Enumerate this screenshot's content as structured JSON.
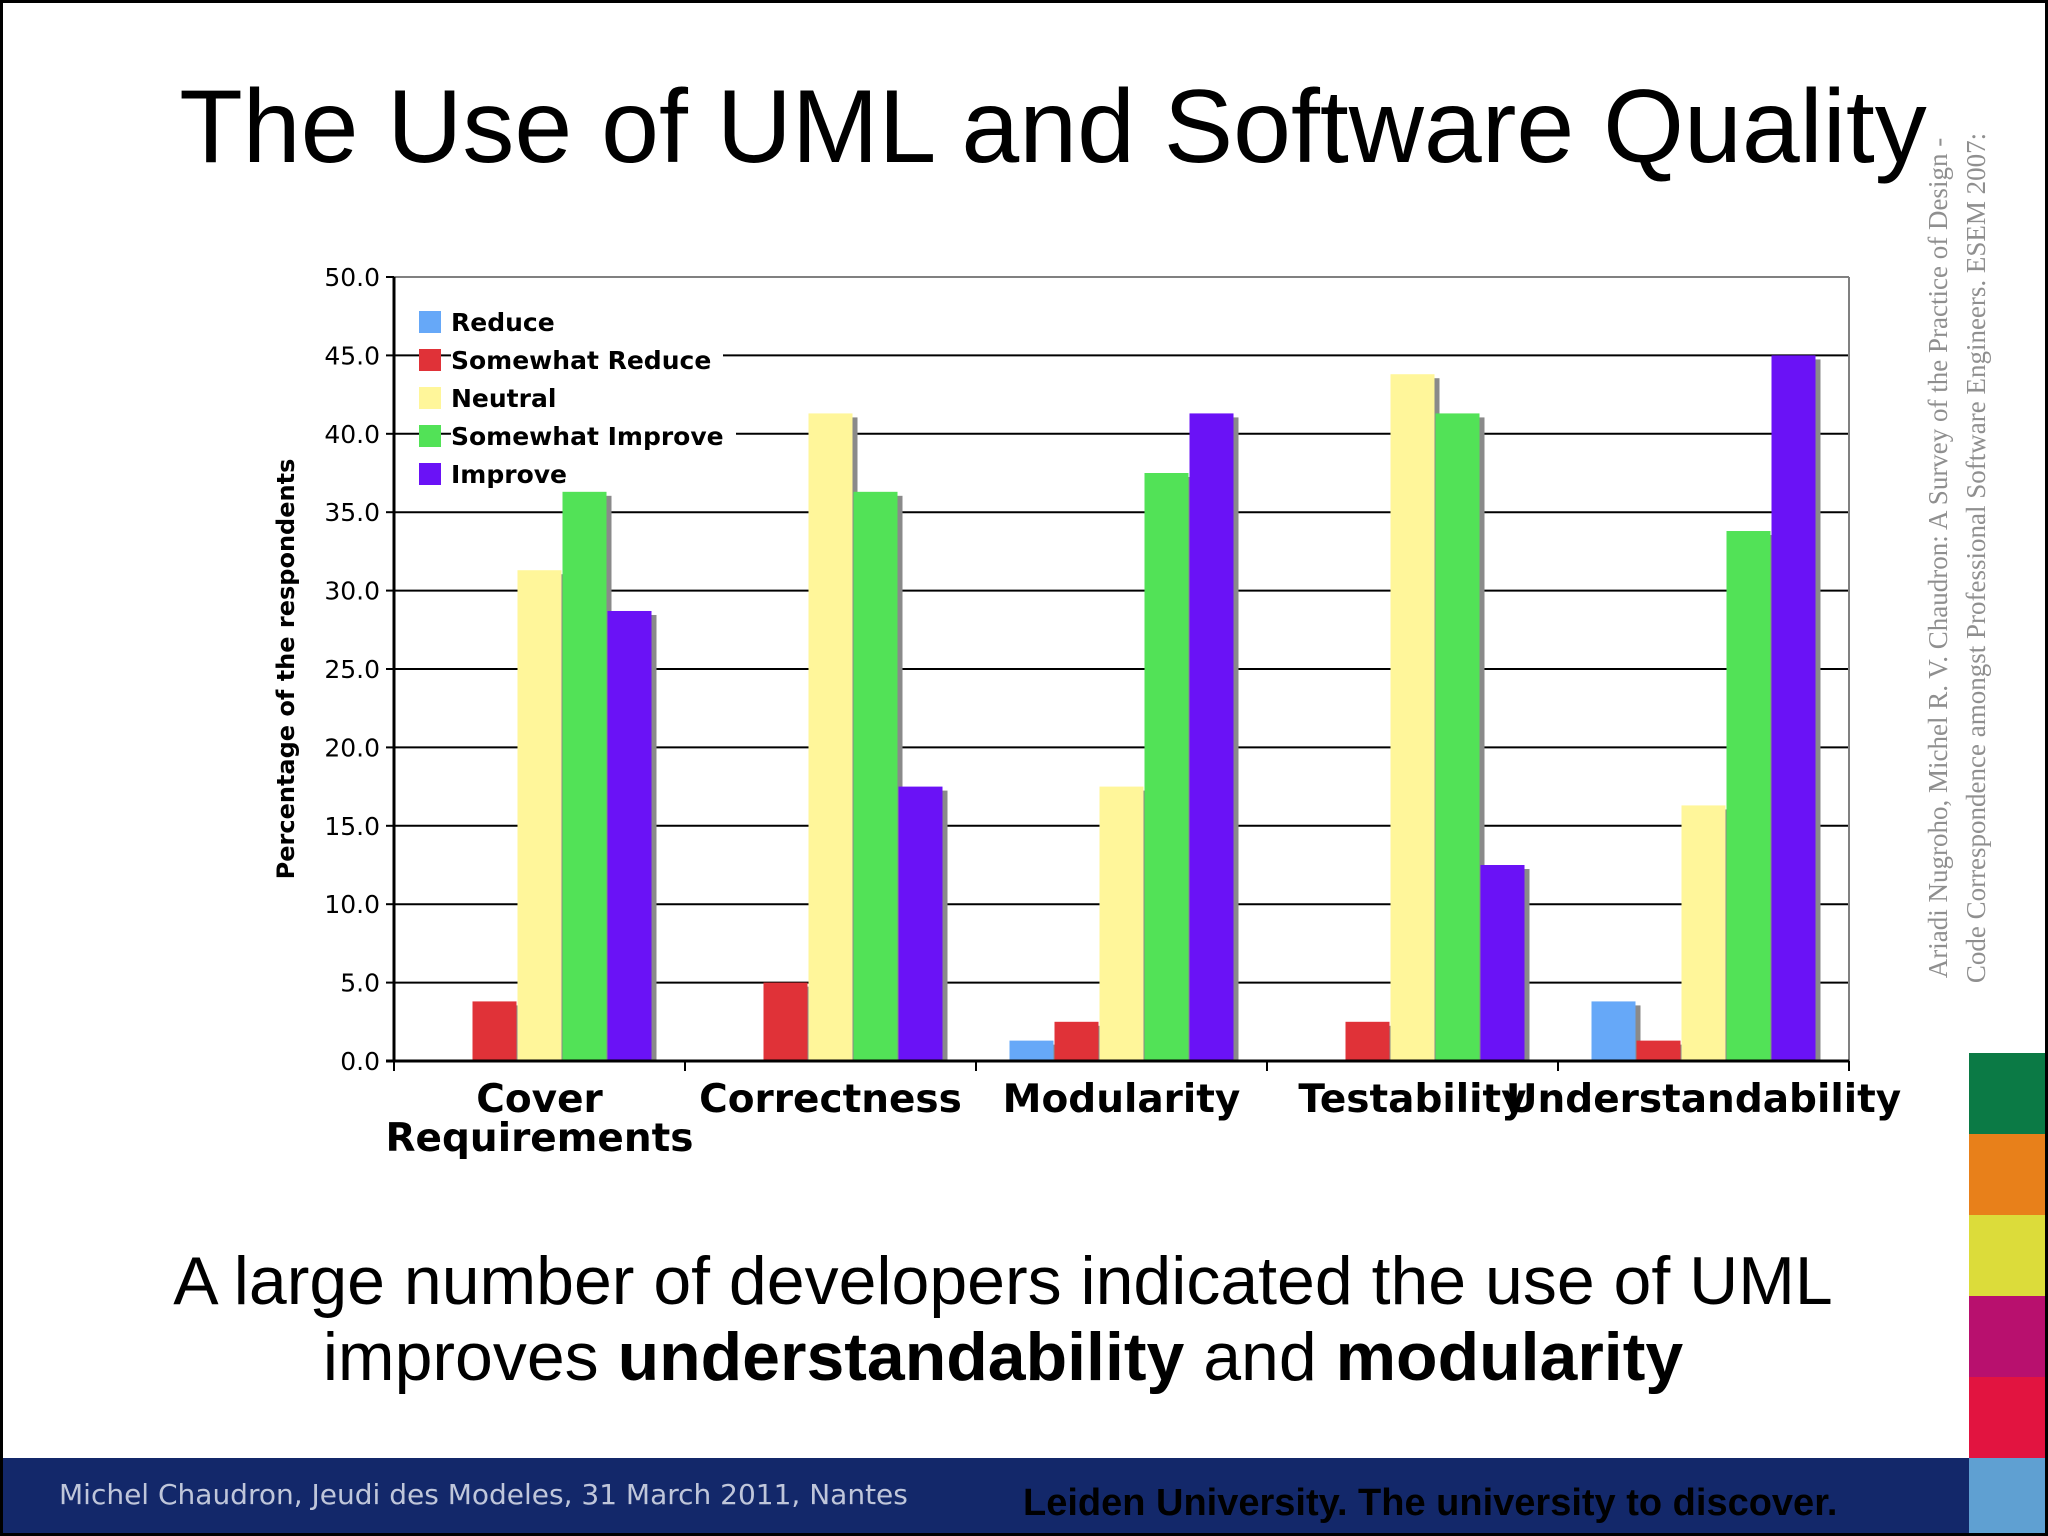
{
  "slide": {
    "title": "The Use of UML and Software Quality",
    "citation_line1": "Ariadi Nugroho, Michel R. V. Chaudron: A Survey of the Practice of Design -",
    "citation_line2": "Code Correspondence amongst Professional Software Engineers. ESEM 2007:",
    "caption_line1": "A large number of developers indicated the use of UML",
    "caption_pre": "improves ",
    "caption_bold1": "understandability",
    "caption_mid": " and ",
    "caption_bold2": "modularity",
    "footer_left": "Michel Chaudron, Jeudi des Modeles, 31 March 2011, Nantes",
    "footer_right": "Leiden University. The university to discover."
  },
  "colors": {
    "footer_bg": "#13286a",
    "stripes": [
      "#0b7a45",
      "#e8801a",
      "#dcdc3a",
      "#b8106e",
      "#e21440",
      "#5fa0d2"
    ]
  },
  "chart_data": {
    "type": "bar",
    "ylabel": "Percentage of the respondents",
    "xlabel": "",
    "ylim": [
      0,
      50
    ],
    "yticks": [
      "0.0",
      "5.0",
      "10.0",
      "15.0",
      "20.0",
      "25.0",
      "30.0",
      "35.0",
      "40.0",
      "45.0",
      "50.0"
    ],
    "categories": [
      [
        "Cover",
        "Requirements"
      ],
      [
        "Correctness"
      ],
      [
        "Modularity"
      ],
      [
        "Testability"
      ],
      [
        "Understandability"
      ]
    ],
    "grid": true,
    "legend_position": "top-left",
    "series": [
      {
        "name": "Reduce",
        "color": "#66a8f8",
        "values": [
          0,
          0,
          1.3,
          0,
          3.8
        ]
      },
      {
        "name": "Somewhat Reduce",
        "color": "#e03238",
        "values": [
          3.8,
          5.0,
          2.5,
          2.5,
          1.3
        ]
      },
      {
        "name": "Neutral",
        "color": "#fff69a",
        "values": [
          31.3,
          41.3,
          17.5,
          43.8,
          16.3
        ]
      },
      {
        "name": "Somewhat Improve",
        "color": "#52e257",
        "values": [
          36.3,
          36.3,
          37.5,
          41.3,
          33.8
        ]
      },
      {
        "name": "Improve",
        "color": "#6a12f6",
        "values": [
          28.7,
          17.5,
          41.3,
          12.5,
          45.0
        ]
      }
    ]
  }
}
